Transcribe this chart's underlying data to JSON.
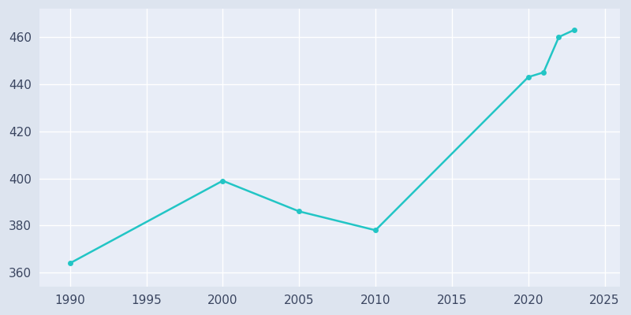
{
  "years": [
    1990,
    2000,
    2005,
    2010,
    2020,
    2021,
    2022,
    2023
  ],
  "population": [
    364,
    399,
    386,
    378,
    443,
    445,
    460,
    463
  ],
  "line_color": "#22c5c5",
  "marker_color": "#22c5c5",
  "background_color": "#dde4ef",
  "plot_bg_color": "#e8edf7",
  "grid_color": "#ffffff",
  "text_color": "#3a4560",
  "xlim": [
    1988,
    2026
  ],
  "ylim": [
    354,
    472
  ],
  "xticks": [
    1990,
    1995,
    2000,
    2005,
    2010,
    2015,
    2020,
    2025
  ],
  "yticks": [
    360,
    380,
    400,
    420,
    440,
    460
  ],
  "line_width": 1.8,
  "marker_size": 5
}
